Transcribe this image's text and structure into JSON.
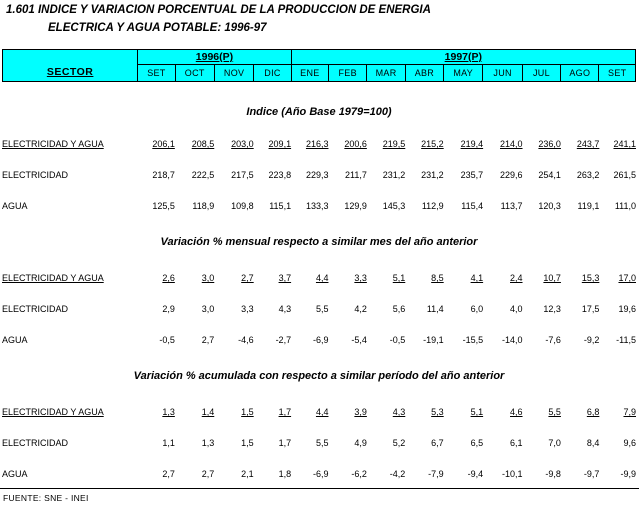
{
  "title": {
    "line1": "1.601  INDICE Y VARIACION PORCENTUAL DE LA PRODUCCION DE ENERGIA",
    "line2": "ELECTRICA Y AGUA POTABLE: 1996-97"
  },
  "header": {
    "sector_label": "SECTOR",
    "year1": "1996(P)",
    "year2": "1997(P)",
    "months_1996": [
      "SET",
      "OCT",
      "NOV",
      "DIC"
    ],
    "months_1997": [
      "ENE",
      "FEB",
      "MAR",
      "ABR",
      "MAY",
      "JUN",
      "JUL",
      "AGO",
      "SET"
    ]
  },
  "sections": [
    {
      "heading": "Indice (Año Base 1979=100)",
      "rows": [
        {
          "label": "ELECTRICIDAD Y AGUA",
          "values": [
            "206,1",
            "208,5",
            "203,0",
            "209,1",
            "216,3",
            "200,6",
            "219,5",
            "215,2",
            "219,4",
            "214,0",
            "236,0",
            "243,7",
            "241,1"
          ]
        },
        {
          "label": "ELECTRICIDAD",
          "values": [
            "218,7",
            "222,5",
            "217,5",
            "223,8",
            "229,3",
            "211,7",
            "231,2",
            "231,2",
            "235,7",
            "229,6",
            "254,1",
            "263,2",
            "261,5"
          ]
        },
        {
          "label": "AGUA",
          "values": [
            "125,5",
            "118,9",
            "109,8",
            "115,1",
            "133,3",
            "129,9",
            "145,3",
            "112,9",
            "115,4",
            "113,7",
            "120,3",
            "119,1",
            "111,0"
          ]
        }
      ]
    },
    {
      "heading": "Variación % mensual respecto a similar mes del año anterior",
      "rows": [
        {
          "label": "ELECTRICIDAD Y AGUA",
          "values": [
            "2,6",
            "3,0",
            "2,7",
            "3,7",
            "4,4",
            "3,3",
            "5,1",
            "8,5",
            "4,1",
            "2,4",
            "10,7",
            "15,3",
            "17,0"
          ]
        },
        {
          "label": "ELECTRICIDAD",
          "values": [
            "2,9",
            "3,0",
            "3,3",
            "4,3",
            "5,5",
            "4,2",
            "5,6",
            "11,4",
            "6,0",
            "4,0",
            "12,3",
            "17,5",
            "19,6"
          ]
        },
        {
          "label": "AGUA",
          "values": [
            "-0,5",
            "2,7",
            "-4,6",
            "-2,7",
            "-6,9",
            "-5,4",
            "-0,5",
            "-19,1",
            "-15,5",
            "-14,0",
            "-7,6",
            "-9,2",
            "-11,5"
          ]
        }
      ]
    },
    {
      "heading": "Variación % acumulada con respecto a similar período del año anterior",
      "rows": [
        {
          "label": "ELECTRICIDAD Y AGUA",
          "values": [
            "1,3",
            "1,4",
            "1,5",
            "1,7",
            "4,4",
            "3,9",
            "4,3",
            "5,3",
            "5,1",
            "4,6",
            "5,5",
            "6,8",
            "7,9"
          ]
        },
        {
          "label": "ELECTRICIDAD",
          "values": [
            "1,1",
            "1,3",
            "1,5",
            "1,7",
            "5,5",
            "4,9",
            "5,2",
            "6,7",
            "6,5",
            "6,1",
            "7,0",
            "8,4",
            "9,6"
          ]
        },
        {
          "label": "AGUA",
          "values": [
            "2,7",
            "2,7",
            "2,1",
            "1,8",
            "-6,9",
            "-6,2",
            "-4,2",
            "-7,9",
            "-9,4",
            "-10,1",
            "-9,8",
            "-9,7",
            "-9,9"
          ]
        }
      ]
    }
  ],
  "footer": {
    "source": "FUENTE: SNE - INEI"
  }
}
